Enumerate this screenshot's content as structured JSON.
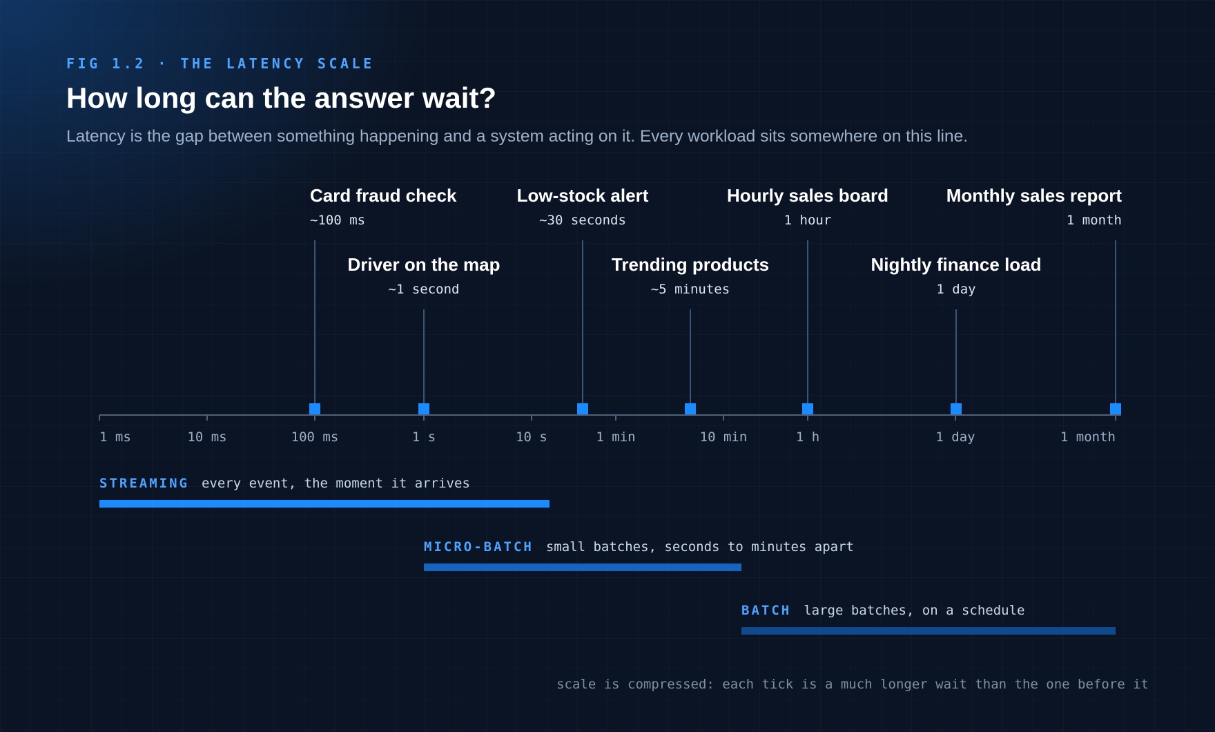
{
  "header": {
    "figure_label": "FIG 1.2 · THE LATENCY SCALE",
    "title": "How long can the answer wait?",
    "subtitle": "Latency is the gap between something happening and a system acting on it. Every workload sits somewhere on this line."
  },
  "colors": {
    "accent": "#1a8cff",
    "label_blue": "#4da3ff",
    "axis": "#52607a",
    "band_streaming": "#1a8cff",
    "band_microbatch": "#1565c0",
    "band_batch": "#0f4a8c"
  },
  "axis": {
    "ticks": [
      "1 ms",
      "10 ms",
      "100 ms",
      "1 s",
      "10 s",
      "1 min",
      "10 min",
      "1 h",
      "1 day",
      "1 month"
    ]
  },
  "workloads": [
    {
      "name": "Card fraud check",
      "latency": "~100 ms",
      "level": "upper",
      "align": "left"
    },
    {
      "name": "Driver on the map",
      "latency": "~1 second",
      "level": "lower",
      "align": "center"
    },
    {
      "name": "Low-stock alert",
      "latency": "~30 seconds",
      "level": "upper",
      "align": "center"
    },
    {
      "name": "Trending products",
      "latency": "~5 minutes",
      "level": "lower",
      "align": "center"
    },
    {
      "name": "Hourly sales board",
      "latency": "1 hour",
      "level": "upper",
      "align": "center"
    },
    {
      "name": "Nightly finance load",
      "latency": "1 day",
      "level": "lower",
      "align": "center"
    },
    {
      "name": "Monthly sales report",
      "latency": "1 month",
      "level": "upper",
      "align": "right"
    }
  ],
  "bands": [
    {
      "name": "STREAMING",
      "description": "every event, the moment it arrives",
      "from": "1 ms",
      "to": "10 s",
      "color": "#1a8cff"
    },
    {
      "name": "MICRO-BATCH",
      "description": "small batches, seconds to minutes apart",
      "from": "1 s",
      "to": "~10 min",
      "color": "#1565c0"
    },
    {
      "name": "BATCH",
      "description": "large batches, on a schedule",
      "from": "~10 min",
      "to": "1 month",
      "color": "#0f4a8c"
    }
  ],
  "footnote": "scale is compressed: each tick is a much longer wait than the one before it"
}
